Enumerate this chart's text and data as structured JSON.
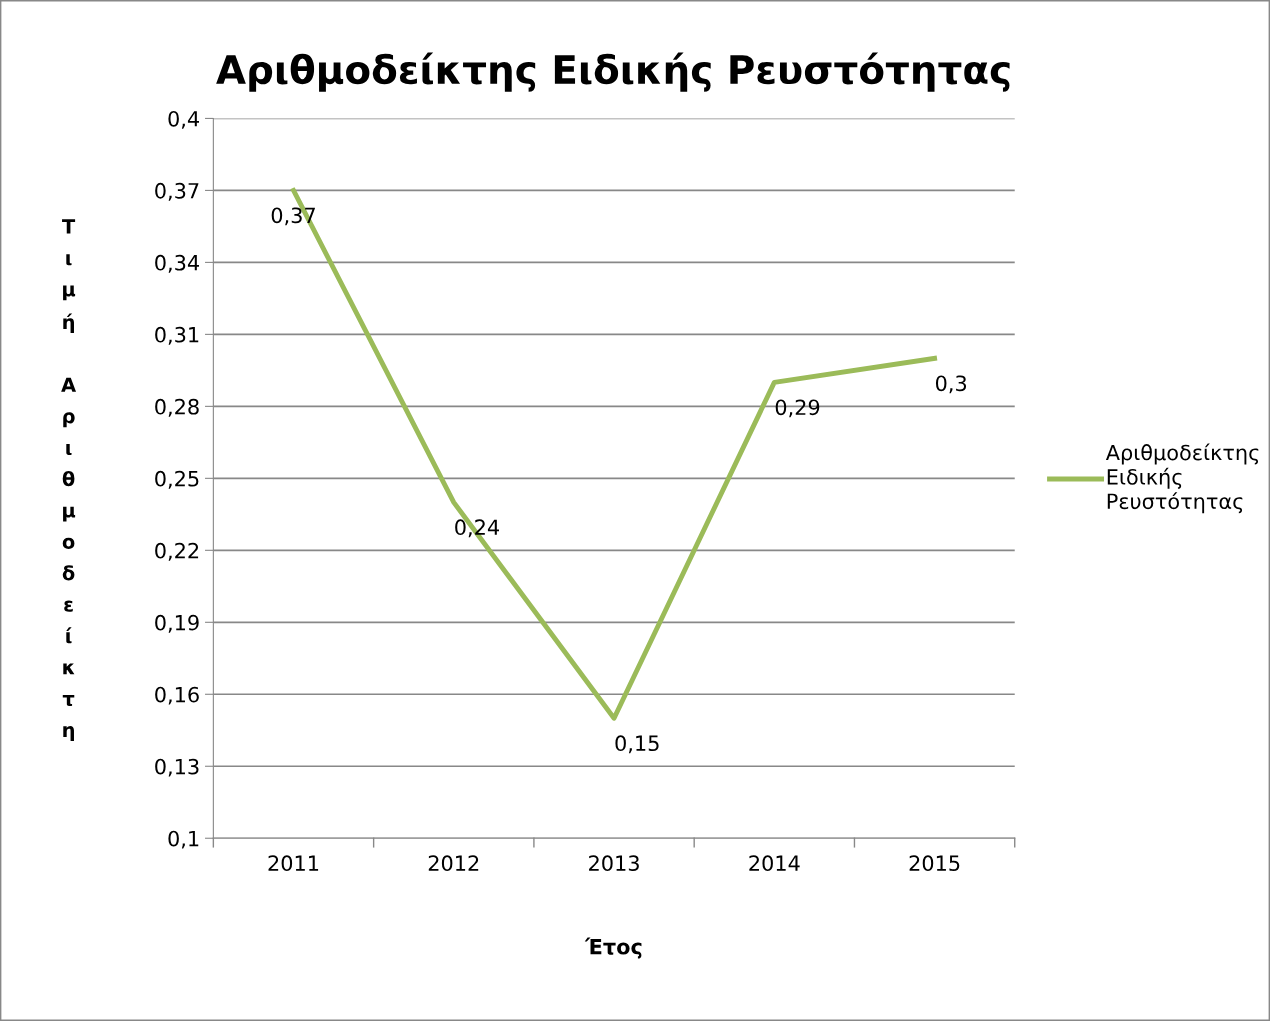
{
  "chart_data": {
    "type": "line",
    "title": "Αριθμοδείκτης Ειδικής Ρευστότητας",
    "xlabel": "Έτος",
    "ylabel": "Τιμή Αριθμοδείκτη",
    "categories": [
      "2011",
      "2012",
      "2013",
      "2014",
      "2015"
    ],
    "series": [
      {
        "name": "Αριθμοδείκτης Ειδικής Ρευστότητας",
        "color": "#9bbb59",
        "values": [
          0.37,
          0.24,
          0.15,
          0.29,
          0.3
        ],
        "value_labels": [
          "0,37",
          "0,24",
          "0,15",
          "0,29",
          "0,3"
        ]
      }
    ],
    "ylim": [
      0.1,
      0.4
    ],
    "yticks": [
      {
        "value": 0.1,
        "label": "0,1"
      },
      {
        "value": 0.13,
        "label": "0,13"
      },
      {
        "value": 0.16,
        "label": "0,16"
      },
      {
        "value": 0.19,
        "label": "0,19"
      },
      {
        "value": 0.22,
        "label": "0,22"
      },
      {
        "value": 0.25,
        "label": "0,25"
      },
      {
        "value": 0.28,
        "label": "0,28"
      },
      {
        "value": 0.31,
        "label": "0,31"
      },
      {
        "value": 0.34,
        "label": "0,34"
      },
      {
        "value": 0.37,
        "label": "0,37"
      },
      {
        "value": 0.4,
        "label": "0,4"
      }
    ],
    "grid": "y",
    "legend": "right",
    "marker": "none",
    "line_style": "solid"
  }
}
